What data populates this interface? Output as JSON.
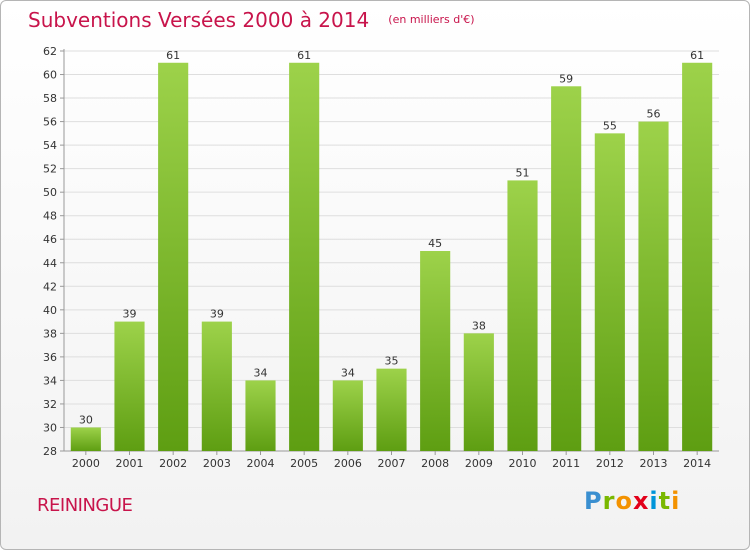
{
  "header": {
    "title": "Subventions Versées 2000 à 2014",
    "subtitle": "(en milliers d'€)"
  },
  "footer": {
    "commune": "REININGUE",
    "logo_text": "Proxiti"
  },
  "colors": {
    "accent": "#c8144b",
    "bar_top": "#9dd24a",
    "bar_bottom": "#5e9e12",
    "grid": "#dddddd"
  },
  "chart_data": {
    "type": "bar",
    "categories": [
      "2000",
      "2001",
      "2002",
      "2003",
      "2004",
      "2005",
      "2006",
      "2007",
      "2008",
      "2009",
      "2010",
      "2011",
      "2012",
      "2013",
      "2014"
    ],
    "values": [
      30,
      39,
      61,
      39,
      34,
      61,
      34,
      35,
      45,
      38,
      51,
      59,
      55,
      56,
      61
    ],
    "ylim": [
      28,
      62
    ],
    "yticks": [
      28,
      30,
      32,
      34,
      36,
      38,
      40,
      42,
      44,
      46,
      48,
      50,
      52,
      54,
      56,
      58,
      60,
      62
    ],
    "grid": true,
    "data_labels": true
  }
}
